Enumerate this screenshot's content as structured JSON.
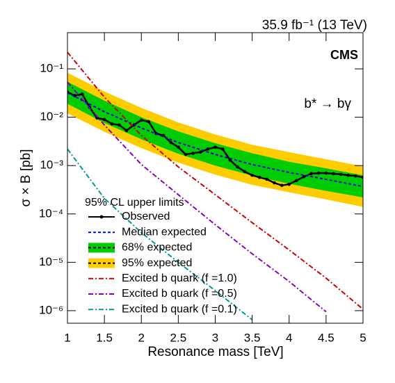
{
  "chart_data": {
    "type": "line",
    "title": "35.9 fb⁻¹ (13 TeV)",
    "experiment": "CMS",
    "annotation": "b* → bγ",
    "x_label": "Resonance mass [TeV]",
    "y_label": "σ × B [pb]",
    "legend_title": "95% CL upper limits",
    "ylog": true,
    "xlim": [
      1,
      5
    ],
    "ylim": [
      5.5e-07,
      0.56
    ],
    "xticks": [
      1,
      1.5,
      2,
      2.5,
      3,
      3.5,
      4,
      4.5,
      5
    ],
    "yticks": [
      {
        "value": 1e-06,
        "label": "10⁻⁶"
      },
      {
        "value": 1e-05,
        "label": "10⁻⁵"
      },
      {
        "value": 0.0001,
        "label": "10⁻⁴"
      },
      {
        "value": 0.001,
        "label": "10⁻³"
      },
      {
        "value": 0.01,
        "label": "10⁻²"
      },
      {
        "value": 0.1,
        "label": "10⁻¹"
      }
    ],
    "series": [
      {
        "name": "Observed",
        "style": "observed",
        "color": "#000000",
        "x": [
          1,
          1.1,
          1.2,
          1.3,
          1.4,
          1.5,
          1.6,
          1.7,
          1.8,
          1.9,
          2,
          2.1,
          2.2,
          2.3,
          2.4,
          2.5,
          2.6,
          2.7,
          2.8,
          2.9,
          3,
          3.1,
          3.2,
          3.3,
          3.4,
          3.5,
          3.6,
          3.7,
          3.8,
          3.9,
          4,
          4.1,
          4.2,
          4.3,
          4.4,
          4.5,
          4.6,
          4.7,
          4.8,
          4.9,
          5
        ],
        "values": [
          0.033,
          0.028,
          0.03,
          0.016,
          0.0096,
          0.009,
          0.0073,
          0.0069,
          0.0053,
          0.0069,
          0.0087,
          0.0081,
          0.0046,
          0.0042,
          0.003,
          0.0024,
          0.0017,
          0.0018,
          0.0019,
          0.0022,
          0.0024,
          0.0022,
          0.0013,
          0.00094,
          0.00075,
          0.00063,
          0.00057,
          0.00052,
          0.00044,
          0.00039,
          0.00041,
          0.00049,
          0.00059,
          0.00068,
          0.0007,
          0.0007,
          0.00068,
          0.00066,
          0.00063,
          0.00061,
          0.00057
        ]
      },
      {
        "name": "Median expected",
        "style": "dashed",
        "color": "#0000dd",
        "x": [
          1,
          1.5,
          2,
          2.5,
          3,
          3.5,
          4,
          4.5,
          5
        ],
        "values": [
          0.032,
          0.013,
          0.006,
          0.003,
          0.0017,
          0.00105,
          0.00072,
          0.00052,
          0.00037
        ]
      },
      {
        "name": "68% expected",
        "style": "band",
        "color": "#00cc00",
        "x": [
          1,
          1.5,
          2,
          2.5,
          3,
          3.5,
          4,
          4.5,
          5
        ],
        "lower": [
          0.019,
          0.0076,
          0.0035,
          0.00175,
          0.001,
          0.00062,
          0.00042,
          0.0003,
          0.00022
        ],
        "upper": [
          0.054,
          0.022,
          0.01,
          0.0051,
          0.0029,
          0.0018,
          0.0012,
          0.00088,
          0.00063
        ]
      },
      {
        "name": "95% expected",
        "style": "band",
        "color": "#ffcc00",
        "x": [
          1,
          1.5,
          2,
          2.5,
          3,
          3.5,
          4,
          4.5,
          5
        ],
        "lower": [
          0.012,
          0.005,
          0.0023,
          0.00115,
          0.00065,
          0.0004,
          0.00028,
          0.0002,
          0.00014
        ],
        "upper": [
          0.083,
          0.034,
          0.0156,
          0.0078,
          0.0044,
          0.0027,
          0.0019,
          0.00135,
          0.00096
        ]
      },
      {
        "name": "Excited b quark (f =1.0)",
        "style": "dashdot",
        "color": "#cc0000",
        "x": [
          1,
          1.5,
          2,
          2.5,
          3,
          3.5,
          4,
          4.5,
          5
        ],
        "values": [
          0.22,
          0.026,
          0.0042,
          0.00094,
          0.00025,
          6.6e-05,
          1.8e-05,
          4.7e-06,
          1.07e-06
        ]
      },
      {
        "name": "Excited b quark (f =0.5)",
        "style": "dashdot",
        "color": "#8800bb",
        "x": [
          1,
          1.5,
          2,
          2.5,
          3,
          3.5,
          4,
          4.5,
          5
        ],
        "values": [
          0.053,
          0.0069,
          0.00105,
          0.00025,
          6e-05,
          1.5e-05,
          4e-06,
          9.5e-07,
          null
        ]
      },
      {
        "name": "Excited b quark (f =0.1)",
        "style": "dashdot",
        "color": "#009999",
        "x": [
          1,
          1.5,
          2,
          2.5,
          3,
          3.5,
          4,
          4.5,
          5
        ],
        "values": [
          0.0022,
          0.00021,
          4.1e-05,
          1e-05,
          2.6e-06,
          6.5e-07,
          null,
          null,
          null
        ]
      }
    ]
  }
}
